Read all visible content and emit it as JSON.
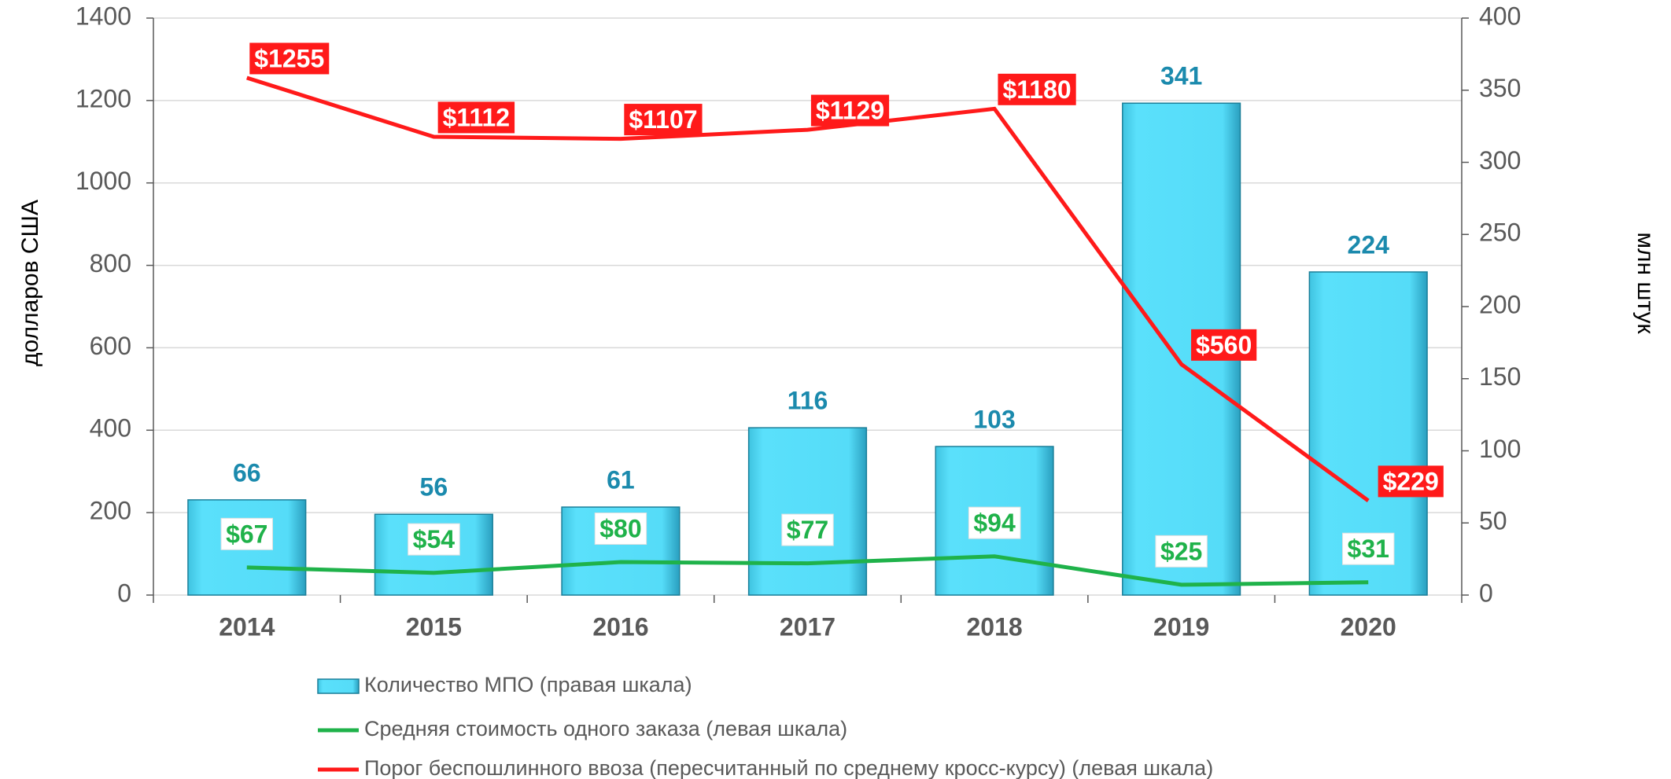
{
  "chart_data": {
    "type": "bar",
    "categories": [
      "2014",
      "2015",
      "2016",
      "2017",
      "2018",
      "2019",
      "2020"
    ],
    "ylabel": "долларов США",
    "y2label": "млн штук",
    "ylim": [
      0,
      1400
    ],
    "yticks": [
      0,
      200,
      400,
      600,
      800,
      1000,
      1200,
      1400
    ],
    "y2lim": [
      0,
      400
    ],
    "y2ticks": [
      0,
      50,
      100,
      150,
      200,
      250,
      300,
      350,
      400
    ],
    "grid": true,
    "legend": "bottom",
    "series": [
      {
        "name": "Количество МПО (правая шкала)",
        "type": "bar",
        "axis": "y2",
        "color": "#55dcf8",
        "values": [
          66,
          56,
          61,
          116,
          103,
          341,
          224
        ]
      },
      {
        "name": "Средняя стоимость одного заказа (левая шкала)",
        "type": "line",
        "color": "#1fb24a",
        "values": [
          67,
          54,
          80,
          77,
          94,
          25,
          31
        ],
        "value_labels": [
          "$67",
          "$54",
          "$80",
          "$77",
          "$94",
          "$25",
          "$31"
        ]
      },
      {
        "name": "Порог беспошлинного ввоза (пересчитанный по среднему кросс-курсу) (левая шкала)",
        "type": "line",
        "color": "#ff1a1a",
        "values": [
          1255,
          1112,
          1107,
          1129,
          1180,
          560,
          229
        ],
        "value_labels": [
          "$1255",
          "$1112",
          "$1107",
          "$1129",
          "$1180",
          "$560",
          "$229"
        ]
      }
    ]
  }
}
